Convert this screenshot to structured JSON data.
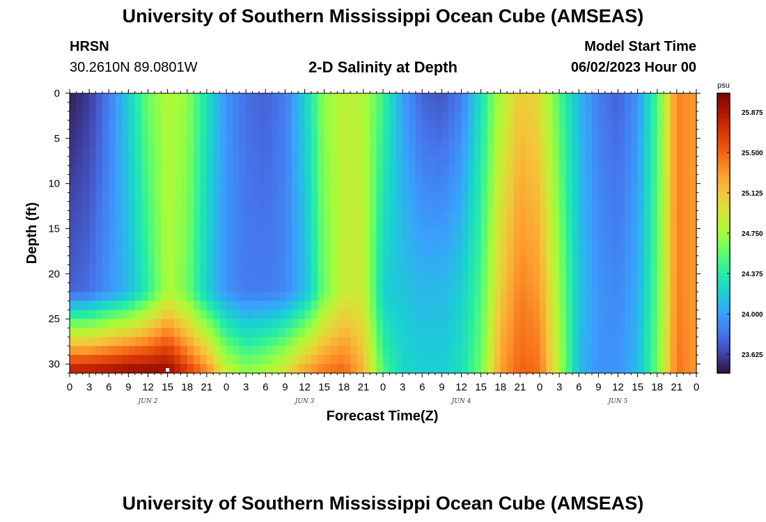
{
  "header": {
    "title": "University of Southern Mississippi Ocean Cube (AMSEAS)",
    "station": "HRSN",
    "coords": "30.2610N  89.0801W",
    "plot_title": "2-D Salinity at Depth",
    "start_label": "Model Start Time",
    "start_value": "06/02/2023 Hour 00"
  },
  "footer": {
    "title": "University of Southern Mississippi Ocean Cube (AMSEAS)"
  },
  "colors": {
    "colormap": [
      "#30123b",
      "#4145ab",
      "#4675ed",
      "#39a2fc",
      "#1bcfd4",
      "#24eca6",
      "#61fc6c",
      "#a4fc3b",
      "#d1e834",
      "#f3c63a",
      "#fe9b2d",
      "#f36315",
      "#d93806",
      "#b11901",
      "#7a0402"
    ]
  },
  "chart_data": {
    "type": "heatmap",
    "title": "2-D Salinity at Depth",
    "xlabel": "Forecast Time(Z)",
    "ylabel": "Depth (ft)",
    "x_range_hours": [
      0,
      96
    ],
    "ylim": [
      0,
      31
    ],
    "y_ticks": [
      0,
      5,
      10,
      15,
      20,
      25,
      30
    ],
    "x_tick_hours": [
      0,
      3,
      6,
      9,
      12,
      15,
      18,
      21,
      24,
      27,
      30,
      33,
      36,
      39,
      42,
      45,
      48,
      51,
      54,
      57,
      60,
      63,
      66,
      69,
      72,
      75,
      78,
      81,
      84,
      87,
      90,
      93,
      96
    ],
    "x_tick_labels": [
      "0",
      "3",
      "6",
      "9",
      "12",
      "15",
      "18",
      "21",
      "0",
      "3",
      "6",
      "9",
      "12",
      "15",
      "18",
      "21",
      "0",
      "3",
      "6",
      "9",
      "12",
      "15",
      "18",
      "21",
      "0",
      "3",
      "6",
      "9",
      "12",
      "15",
      "18",
      "21",
      "0"
    ],
    "day_labels": [
      {
        "hour": 12,
        "label": "JUN 2"
      },
      {
        "hour": 36,
        "label": "JUN 3"
      },
      {
        "hour": 60,
        "label": "JUN 4"
      },
      {
        "hour": 84,
        "label": "JUN 5"
      }
    ],
    "colorbar": {
      "unit": "psu",
      "range": [
        23.45,
        26.05
      ],
      "ticks": [
        23.625,
        24.0,
        24.375,
        24.75,
        25.125,
        25.5,
        25.875
      ],
      "tick_labels": [
        "23.625",
        "24.000",
        "24.375",
        "24.750",
        "25.125",
        "25.500",
        "25.875"
      ]
    },
    "depth_profile_ft": [
      0,
      22,
      31
    ],
    "salinity_psu_by_hour": [
      {
        "hour": 0,
        "surface": 23.5,
        "mid": 23.75,
        "bottom": 25.9
      },
      {
        "hour": 3,
        "surface": 23.6,
        "mid": 23.8,
        "bottom": 25.9
      },
      {
        "hour": 6,
        "surface": 23.85,
        "mid": 23.95,
        "bottom": 25.95
      },
      {
        "hour": 9,
        "surface": 24.2,
        "mid": 24.1,
        "bottom": 26.0
      },
      {
        "hour": 12,
        "surface": 24.6,
        "mid": 24.4,
        "bottom": 26.0
      },
      {
        "hour": 15,
        "surface": 24.8,
        "mid": 24.8,
        "bottom": 26.0
      },
      {
        "hour": 18,
        "surface": 24.7,
        "mid": 24.6,
        "bottom": 25.7
      },
      {
        "hour": 21,
        "surface": 24.3,
        "mid": 24.2,
        "bottom": 25.4
      },
      {
        "hour": 24,
        "surface": 23.95,
        "mid": 23.95,
        "bottom": 24.9
      },
      {
        "hour": 27,
        "surface": 23.8,
        "mid": 23.85,
        "bottom": 24.7
      },
      {
        "hour": 30,
        "surface": 23.75,
        "mid": 23.85,
        "bottom": 24.8
      },
      {
        "hour": 33,
        "surface": 23.85,
        "mid": 23.9,
        "bottom": 25.0
      },
      {
        "hour": 36,
        "surface": 24.2,
        "mid": 24.1,
        "bottom": 25.3
      },
      {
        "hour": 39,
        "surface": 24.7,
        "mid": 24.6,
        "bottom": 25.45
      },
      {
        "hour": 42,
        "surface": 24.85,
        "mid": 24.9,
        "bottom": 25.5
      },
      {
        "hour": 45,
        "surface": 24.8,
        "mid": 24.9,
        "bottom": 25.2
      },
      {
        "hour": 48,
        "surface": 24.45,
        "mid": 24.2,
        "bottom": 24.5
      },
      {
        "hour": 51,
        "surface": 24.0,
        "mid": 24.15,
        "bottom": 24.25
      },
      {
        "hour": 54,
        "surface": 23.75,
        "mid": 24.1,
        "bottom": 24.2
      },
      {
        "hour": 57,
        "surface": 23.7,
        "mid": 24.1,
        "bottom": 24.2
      },
      {
        "hour": 60,
        "surface": 23.85,
        "mid": 24.2,
        "bottom": 24.3
      },
      {
        "hour": 63,
        "surface": 24.3,
        "mid": 24.5,
        "bottom": 24.6
      },
      {
        "hour": 66,
        "surface": 24.8,
        "mid": 25.1,
        "bottom": 25.3
      },
      {
        "hour": 69,
        "surface": 25.1,
        "mid": 25.4,
        "bottom": 25.5
      },
      {
        "hour": 72,
        "surface": 25.0,
        "mid": 25.3,
        "bottom": 25.45
      },
      {
        "hour": 75,
        "surface": 24.5,
        "mid": 24.7,
        "bottom": 24.8
      },
      {
        "hour": 78,
        "surface": 24.1,
        "mid": 24.15,
        "bottom": 24.1
      },
      {
        "hour": 81,
        "surface": 23.85,
        "mid": 23.95,
        "bottom": 23.95
      },
      {
        "hour": 84,
        "surface": 23.75,
        "mid": 23.9,
        "bottom": 23.95
      },
      {
        "hour": 87,
        "surface": 23.95,
        "mid": 24.05,
        "bottom": 24.1
      },
      {
        "hour": 90,
        "surface": 24.5,
        "mid": 24.55,
        "bottom": 24.6
      },
      {
        "hour": 93,
        "surface": 25.4,
        "mid": 25.4,
        "bottom": 25.45
      },
      {
        "hour": 96,
        "surface": 25.3,
        "mid": 25.3,
        "bottom": 25.3
      }
    ]
  }
}
